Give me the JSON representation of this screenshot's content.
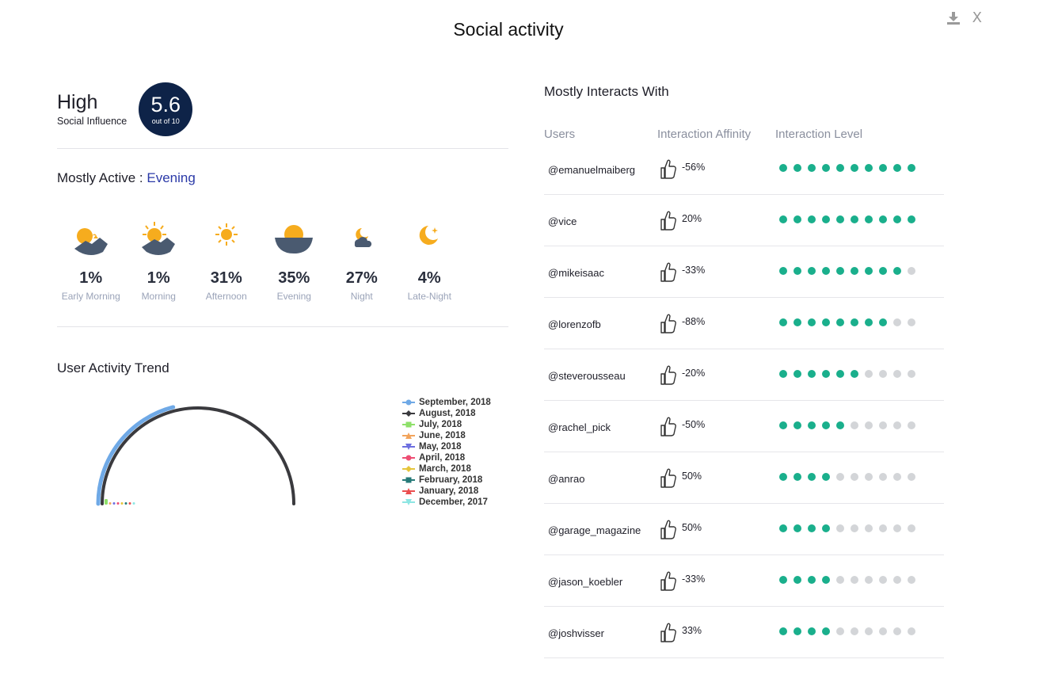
{
  "header": {
    "title": "Social activity",
    "close_label": "X"
  },
  "influence": {
    "level": "High",
    "label": "Social Influence",
    "score": "5.6",
    "score_suffix": "out of 10"
  },
  "mostly_active": {
    "label": "Mostly Active :",
    "value": "Evening"
  },
  "times": [
    {
      "pct": "1%",
      "label": "Early Morning",
      "icon": "sunrise-icon"
    },
    {
      "pct": "1%",
      "label": "Morning",
      "icon": "morning-sun-icon"
    },
    {
      "pct": "31%",
      "label": "Afternoon",
      "icon": "sun-icon"
    },
    {
      "pct": "35%",
      "label": "Evening",
      "icon": "sunset-icon"
    },
    {
      "pct": "27%",
      "label": "Night",
      "icon": "cloud-moon-icon"
    },
    {
      "pct": "4%",
      "label": "Late-Night",
      "icon": "moon-icon"
    }
  ],
  "trend": {
    "title": "User Activity Trend",
    "legend": [
      {
        "name": "September, 2018",
        "color": "#6fa9e6",
        "marker": "circle"
      },
      {
        "name": "August, 2018",
        "color": "#3a3a3e",
        "marker": "diamond"
      },
      {
        "name": "July, 2018",
        "color": "#8ee06a",
        "marker": "square"
      },
      {
        "name": "June, 2018",
        "color": "#f2a45c",
        "marker": "triangle"
      },
      {
        "name": "May, 2018",
        "color": "#6d6fe0",
        "marker": "triangle-down"
      },
      {
        "name": "April, 2018",
        "color": "#ee4e74",
        "marker": "circle"
      },
      {
        "name": "March, 2018",
        "color": "#e6c53c",
        "marker": "diamond"
      },
      {
        "name": "February, 2018",
        "color": "#267a78",
        "marker": "square"
      },
      {
        "name": "January, 2018",
        "color": "#ea4f50",
        "marker": "triangle"
      },
      {
        "name": "December, 2017",
        "color": "#8de6e3",
        "marker": "triangle-down"
      }
    ],
    "arc_fractions": [
      0.42,
      1.0,
      0.01,
      0.0,
      0.0,
      0.0,
      0.0,
      0.0,
      0.0,
      0.0
    ]
  },
  "interactions": {
    "title": "Mostly Interacts With",
    "columns": [
      "Users",
      "Interaction Affinity",
      "Interaction Level"
    ],
    "accent_color": "#1aaf8c",
    "rows": [
      {
        "user": "@emanuelmaiberg",
        "affinity": "-56%",
        "level": 10
      },
      {
        "user": "@vice",
        "affinity": "20%",
        "level": 10
      },
      {
        "user": "@mikeisaac",
        "affinity": "-33%",
        "level": 9
      },
      {
        "user": "@lorenzofb",
        "affinity": "-88%",
        "level": 8
      },
      {
        "user": "@steverousseau",
        "affinity": "-20%",
        "level": 6
      },
      {
        "user": "@rachel_pick",
        "affinity": "-50%",
        "level": 5
      },
      {
        "user": "@anrao",
        "affinity": "50%",
        "level": 4
      },
      {
        "user": "@garage_magazine",
        "affinity": "50%",
        "level": 4
      },
      {
        "user": "@jason_koebler",
        "affinity": "-33%",
        "level": 4
      },
      {
        "user": "@joshvisser",
        "affinity": "33%",
        "level": 4
      }
    ]
  }
}
